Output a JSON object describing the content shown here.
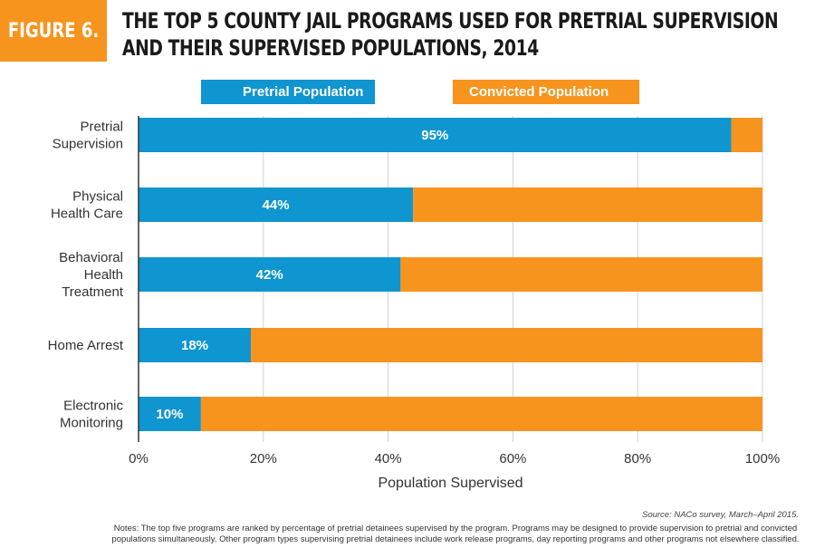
{
  "figure_label": "FIGURE 6.",
  "title": "THE TOP 5 COUNTY JAIL PROGRAMS USED FOR PRETRIAL SUPERVISION AND THEIR SUPERVISED POPULATIONS, 2014",
  "colors": {
    "pretrial": "#0f95cf",
    "convicted": "#f7941d",
    "badge": "#f7941d",
    "grid": "#d0d0d0",
    "axis": "#333333"
  },
  "legend": [
    {
      "label": "Pretrial Population",
      "color": "#0f95cf"
    },
    {
      "label": "Convicted Population",
      "color": "#f7941d"
    }
  ],
  "chart_data": {
    "type": "bar",
    "orientation": "horizontal",
    "stacked": true,
    "categories": [
      [
        "Pretrial",
        "Supervision"
      ],
      [
        "Physical",
        "Health Care"
      ],
      [
        "Behavioral",
        "Health",
        "Treatment"
      ],
      [
        "Home Arrest"
      ],
      [
        "Electronic",
        "Monitoring"
      ]
    ],
    "series": [
      {
        "name": "Pretrial Population",
        "values": [
          95,
          44,
          42,
          18,
          10
        ],
        "labels": [
          "95%",
          "44%",
          "42%",
          "18%",
          "10%"
        ]
      },
      {
        "name": "Convicted Population",
        "values": [
          5,
          56,
          58,
          82,
          90
        ]
      }
    ],
    "xlim": [
      0,
      100
    ],
    "xticks": [
      "0%",
      "20%",
      "40%",
      "60%",
      "80%",
      "100%"
    ],
    "xlabel": "Population Supervised",
    "grid": "vertical",
    "legend_position": "top"
  },
  "source": "Source: NACo survey, March–April 2015.",
  "notes": "Notes: The top five programs are ranked by percentage of pretrial detainees supervised by the program.  Programs may be designed to provide supervision to pretrial and convicted populations simultaneously.  Other program types supervising pretrial detainees include work release programs, day reporting programs and other programs not elsewhere classified."
}
